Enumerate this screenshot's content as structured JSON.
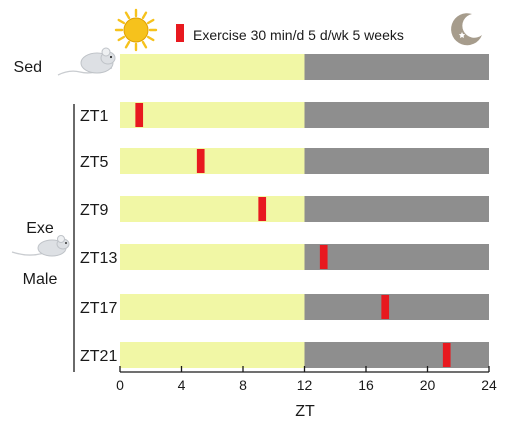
{
  "legend": {
    "label": "Exercise  30 min/d  5 d/wk 5 weeks",
    "color": "#e8191f",
    "sun_icon": "sun-icon",
    "moon_icon": "moon-stars-icon"
  },
  "groups": {
    "sedentary_label": "Sed",
    "exercise_label": "Exe",
    "sex_label": "Male",
    "mouse_icon": "mouse-icon"
  },
  "axis": {
    "title": "ZT",
    "ticks": [
      "0",
      "4",
      "8",
      "12",
      "16",
      "20",
      "24"
    ],
    "tick_values": [
      0,
      4,
      8,
      12,
      16,
      20,
      24
    ],
    "range": [
      0,
      24
    ]
  },
  "colors": {
    "light_phase": "#f1f7a5",
    "dark_phase": "#8e8e8e",
    "exercise": "#e8191f",
    "sun": "#f6c21c",
    "moon": "#a69c8c"
  },
  "chart_data": {
    "type": "timeline",
    "light_phase": [
      0,
      12
    ],
    "dark_phase": [
      12,
      24
    ],
    "rows": [
      {
        "label": "Sed",
        "exercise_zt": null
      },
      {
        "label": "ZT1",
        "exercise_zt": 1
      },
      {
        "label": "ZT5",
        "exercise_zt": 5
      },
      {
        "label": "ZT9",
        "exercise_zt": 9
      },
      {
        "label": "ZT13",
        "exercise_zt": 13
      },
      {
        "label": "ZT17",
        "exercise_zt": 17
      },
      {
        "label": "ZT21",
        "exercise_zt": 21
      }
    ],
    "exercise_duration_h": 0.5
  }
}
